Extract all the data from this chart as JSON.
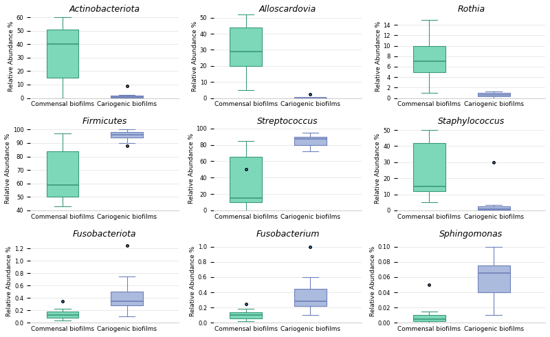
{
  "plots": [
    {
      "title": "Actinobacteriota",
      "ylim": [
        0,
        62
      ],
      "yticks": [
        0,
        10,
        20,
        30,
        40,
        50,
        60
      ],
      "commensal": {
        "whislo": 0,
        "q1": 15,
        "med": 40,
        "q3": 51,
        "whishi": 60,
        "fliers": []
      },
      "cariogenic": {
        "whislo": 0,
        "q1": 0.5,
        "med": 1,
        "q3": 2,
        "whishi": 2.5,
        "fliers": [
          9
        ]
      },
      "commensal_color": "#7DD8BA",
      "cariogenic_color": "#AABBDD"
    },
    {
      "title": "Alloscardovia",
      "ylim": [
        0,
        52
      ],
      "yticks": [
        0,
        10,
        20,
        30,
        40,
        50
      ],
      "commensal": {
        "whislo": 5,
        "q1": 20,
        "med": 29,
        "q3": 44,
        "whishi": 52,
        "fliers": []
      },
      "cariogenic": {
        "whislo": 0,
        "q1": 0,
        "med": 0.1,
        "q3": 0.2,
        "whishi": 0.3,
        "fliers": [
          2.5
        ]
      },
      "commensal_color": "#7DD8BA",
      "cariogenic_color": "#AABBDD"
    },
    {
      "title": "Rothia",
      "ylim": [
        0,
        16
      ],
      "yticks": [
        0,
        2,
        4,
        6,
        8,
        10,
        12,
        14
      ],
      "commensal": {
        "whislo": 1,
        "q1": 5,
        "med": 7,
        "q3": 10,
        "whishi": 15,
        "fliers": []
      },
      "cariogenic": {
        "whislo": 0,
        "q1": 0.3,
        "med": 0.6,
        "q3": 1.0,
        "whishi": 1.2,
        "fliers": []
      },
      "commensal_color": "#7DD8BA",
      "cariogenic_color": "#AABBDD"
    },
    {
      "title": "Firmicutes",
      "ylim": [
        40,
        102
      ],
      "yticks": [
        40,
        50,
        60,
        70,
        80,
        90,
        100
      ],
      "commensal": {
        "whislo": 43,
        "q1": 50,
        "med": 59,
        "q3": 84,
        "whishi": 97,
        "fliers": []
      },
      "cariogenic": {
        "whislo": 90,
        "q1": 94,
        "med": 96,
        "q3": 98,
        "whishi": 100,
        "fliers": [
          88
        ]
      },
      "commensal_color": "#7DD8BA",
      "cariogenic_color": "#AABBDD"
    },
    {
      "title": "Streptococcus",
      "ylim": [
        0,
        102
      ],
      "yticks": [
        0,
        20,
        40,
        60,
        80,
        100
      ],
      "commensal": {
        "whislo": 0,
        "q1": 10,
        "med": 15,
        "q3": 65,
        "whishi": 85,
        "fliers": [
          50
        ]
      },
      "cariogenic": {
        "whislo": 72,
        "q1": 80,
        "med": 87,
        "q3": 90,
        "whishi": 95,
        "fliers": []
      },
      "commensal_color": "#7DD8BA",
      "cariogenic_color": "#AABBDD"
    },
    {
      "title": "Staphylococcus",
      "ylim": [
        0,
        52
      ],
      "yticks": [
        0,
        10,
        20,
        30,
        40,
        50
      ],
      "commensal": {
        "whislo": 5,
        "q1": 12,
        "med": 15,
        "q3": 42,
        "whishi": 50,
        "fliers": []
      },
      "cariogenic": {
        "whislo": 0,
        "q1": 0.5,
        "med": 1,
        "q3": 2.5,
        "whishi": 3.5,
        "fliers": [
          30
        ]
      },
      "commensal_color": "#7DD8BA",
      "cariogenic_color": "#AABBDD"
    },
    {
      "title": "Fusobacteriota",
      "ylim": [
        0,
        1.35
      ],
      "yticks": [
        0,
        0.2,
        0.4,
        0.6,
        0.8,
        1.0,
        1.2
      ],
      "commensal": {
        "whislo": 0.03,
        "q1": 0.08,
        "med": 0.12,
        "q3": 0.18,
        "whishi": 0.22,
        "fliers": [
          0.35
        ]
      },
      "cariogenic": {
        "whislo": 0.1,
        "q1": 0.28,
        "med": 0.35,
        "q3": 0.5,
        "whishi": 0.75,
        "fliers": [
          1.25
        ]
      },
      "commensal_color": "#7DD8BA",
      "cariogenic_color": "#AABBDD"
    },
    {
      "title": "Fusobacterium",
      "ylim": [
        0,
        1.1
      ],
      "yticks": [
        0,
        0.2,
        0.4,
        0.6,
        0.8,
        1.0
      ],
      "commensal": {
        "whislo": 0.02,
        "q1": 0.06,
        "med": 0.1,
        "q3": 0.14,
        "whishi": 0.18,
        "fliers": [
          0.25
        ]
      },
      "cariogenic": {
        "whislo": 0.1,
        "q1": 0.22,
        "med": 0.28,
        "q3": 0.45,
        "whishi": 0.6,
        "fliers": [
          1.0
        ]
      },
      "commensal_color": "#7DD8BA",
      "cariogenic_color": "#AABBDD"
    },
    {
      "title": "Sphingomonas",
      "ylim": [
        0,
        0.11
      ],
      "yticks": [
        0,
        0.02,
        0.04,
        0.06,
        0.08,
        0.1
      ],
      "commensal": {
        "whislo": 0,
        "q1": 0.002,
        "med": 0.005,
        "q3": 0.01,
        "whishi": 0.015,
        "fliers": [
          0.05
        ]
      },
      "cariogenic": {
        "whislo": 0.01,
        "q1": 0.04,
        "med": 0.065,
        "q3": 0.075,
        "whishi": 0.1,
        "fliers": []
      },
      "commensal_color": "#7DD8BA",
      "cariogenic_color": "#AABBDD"
    }
  ],
  "ylabel": "Relative Abundance %",
  "xlabel_commensal": "Commensal biofilms",
  "xlabel_cariogenic": "Cariogenic biofilms",
  "background_color": "#FFFFFF",
  "grid_color": "#E0E0E0",
  "title_fontsize": 9,
  "label_fontsize": 6.5,
  "tick_fontsize": 6
}
